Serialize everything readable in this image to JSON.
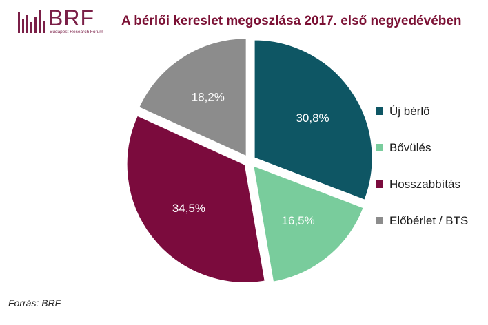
{
  "logo": {
    "text": "BRF",
    "subtitle": "Budapest Research Forum",
    "color": "#7a1f47"
  },
  "title": "A bérlői kereslet megoszlása 2017. első negyedévében",
  "source": "Forrás: BRF",
  "chart_data": {
    "type": "pie",
    "title": "A bérlői kereslet megoszlása 2017. első negyedévében",
    "categories": [
      "Új bérlő",
      "Bővülés",
      "Hosszabbítás",
      "Előbérlet / BTS"
    ],
    "values": [
      30.8,
      16.5,
      34.5,
      18.2
    ],
    "labels": [
      "30,8%",
      "16,5%",
      "34,5%",
      "18,2%"
    ],
    "colors": [
      "#0e5664",
      "#79cc9c",
      "#7b0b3d",
      "#8c8c8c"
    ],
    "start_angle_deg": 0,
    "direction": "clockwise",
    "legend_position": "right"
  }
}
